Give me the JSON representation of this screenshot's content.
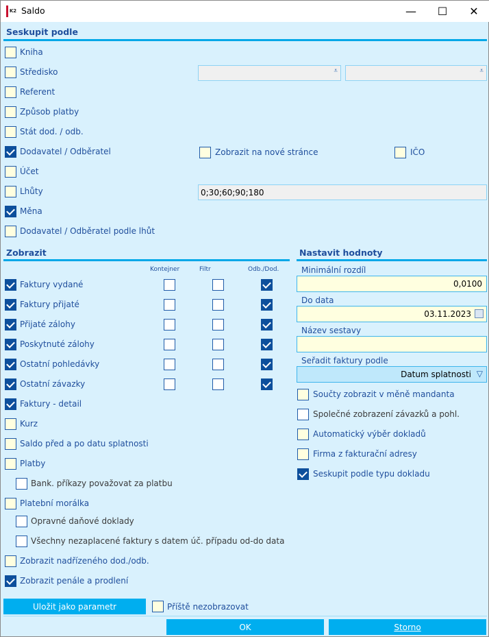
{
  "window": {
    "title": "Saldo",
    "logo_text": "K2",
    "minimize": "—",
    "maximize": "☐",
    "close": "✕"
  },
  "group": {
    "title": "Seskupit podle",
    "items": [
      {
        "label": "Kniha",
        "checked": false
      },
      {
        "label": "Středisko",
        "checked": false
      },
      {
        "label": "Referent",
        "checked": false
      },
      {
        "label": "Způsob platby",
        "checked": false
      },
      {
        "label": "Stát dod. / odb.",
        "checked": false
      },
      {
        "label": "Dodavatel / Odběratel",
        "checked": true
      },
      {
        "label": "Účet",
        "checked": false
      },
      {
        "label": "Lhůty",
        "checked": false
      },
      {
        "label": "Měna",
        "checked": true
      },
      {
        "label": "Dodavatel / Odběratel podle lhůt",
        "checked": false
      }
    ],
    "stredisko_combo1": "",
    "stredisko_combo2": "",
    "new_page": {
      "label": "Zobrazit na nové stránce",
      "checked": false
    },
    "ico": {
      "label": "IČO",
      "checked": false
    },
    "lhuty_value": "0;30;60;90;180"
  },
  "display": {
    "title": "Zobrazit",
    "columns": [
      "Kontejner",
      "Filtr",
      "Odb./Dod."
    ],
    "rows": [
      {
        "label": "Faktury vydané",
        "checked": true,
        "kontejner": false,
        "filtr": false,
        "odb": true
      },
      {
        "label": "Faktury přijaté",
        "checked": true,
        "kontejner": false,
        "filtr": false,
        "odb": true
      },
      {
        "label": "Přijaté zálohy",
        "checked": true,
        "kontejner": false,
        "filtr": false,
        "odb": true
      },
      {
        "label": "Poskytnuté zálohy",
        "checked": true,
        "kontejner": false,
        "filtr": false,
        "odb": true
      },
      {
        "label": "Ostatní pohledávky",
        "checked": true,
        "kontejner": false,
        "filtr": false,
        "odb": true
      },
      {
        "label": "Ostatní závazky",
        "checked": true,
        "kontejner": false,
        "filtr": false,
        "odb": true
      }
    ],
    "options": [
      {
        "label": "Faktury - detail",
        "checked": true,
        "indent": false
      },
      {
        "label": "Kurz",
        "checked": false,
        "indent": false
      },
      {
        "label": "Saldo před a po datu splatnosti",
        "checked": false,
        "indent": false
      },
      {
        "label": "Platby",
        "checked": false,
        "indent": false
      },
      {
        "label": "Bank. příkazy považovat za platbu",
        "checked": false,
        "indent": true
      },
      {
        "label": "Platební morálka",
        "checked": false,
        "indent": false
      },
      {
        "label": "Opravné daňové doklady",
        "checked": false,
        "indent": true
      },
      {
        "label": "Všechny nezaplacené faktury s datem úč. případu od-do data",
        "checked": false,
        "indent": true
      },
      {
        "label": "Zobrazit nadřízeného dod./odb.",
        "checked": false,
        "indent": false
      },
      {
        "label": "Zobrazit penále a prodlení",
        "checked": true,
        "indent": false
      }
    ]
  },
  "values": {
    "title": "Nastavit hodnoty",
    "min_diff": {
      "label": "Minimální rozdíl",
      "value": "0,0100"
    },
    "date": {
      "label": "Do data",
      "value": "03.11.2023"
    },
    "report_name": {
      "label": "Název sestavy",
      "value": ""
    },
    "sort": {
      "label": "Seřadit faktury podle",
      "value": "Datum splatnosti"
    },
    "options": [
      {
        "label": "Součty zobrazit v měně mandanta",
        "checked": false,
        "white": false
      },
      {
        "label": "Společné zobrazení závazků a pohl.",
        "checked": false,
        "white": true
      },
      {
        "label": "Automatický výběr dokladů",
        "checked": false,
        "white": false
      },
      {
        "label": "Firma z fakturační adresy",
        "checked": false,
        "white": false
      },
      {
        "label": "Seskupit podle typu dokladu",
        "checked": true,
        "white": false
      }
    ]
  },
  "footer": {
    "save_param": "Uložit jako parametr",
    "dont_show": {
      "label": "Příště nezobrazovat",
      "checked": false
    },
    "ok": "OK",
    "cancel": "Storno"
  }
}
